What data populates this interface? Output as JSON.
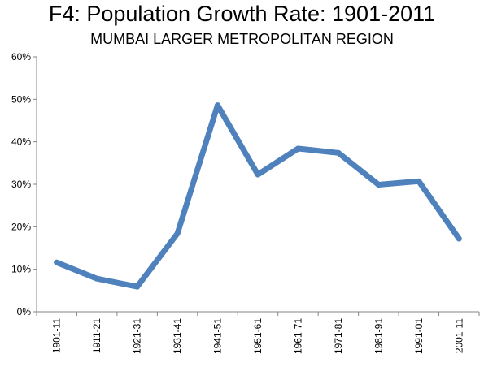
{
  "chart_data": {
    "type": "line",
    "title": "F4: Population Growth Rate: 1901-2011",
    "subtitle": "MUMBAI LARGER METROPOLITAN REGION",
    "xlabel": "",
    "ylabel": "",
    "categories": [
      "1901-11",
      "1911-21",
      "1921-31",
      "1931-41",
      "1941-51",
      "1951-61",
      "1961-71",
      "1971-81",
      "1981-91",
      "1991-01",
      "2001-11"
    ],
    "series": [
      {
        "values": [
          11.6,
          7.8,
          5.9,
          18.4,
          48.6,
          32.3,
          38.4,
          37.4,
          29.9,
          30.7,
          17.2
        ]
      }
    ],
    "ylim": [
      0,
      60
    ],
    "yticks": [
      0,
      10,
      20,
      30,
      40,
      50,
      60
    ],
    "ytick_labels": [
      "0%",
      "10%",
      "20%",
      "30%",
      "40%",
      "50%",
      "60%"
    ],
    "grid": false,
    "legend": "none",
    "line_color": "#4F81BD"
  }
}
